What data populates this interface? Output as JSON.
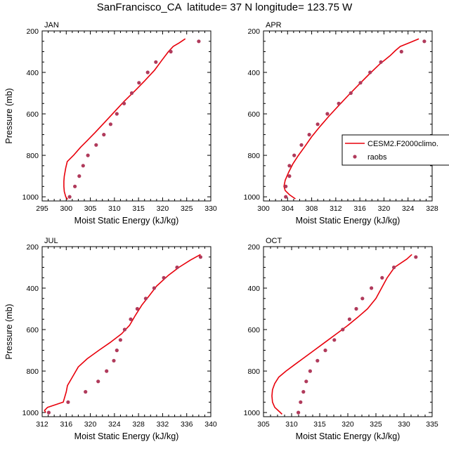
{
  "title": "SanFrancisco_CA  latitude= 37 N longitude= 123.75 W",
  "colors": {
    "model": "#e8000b",
    "obs": "#b03a5b",
    "axis": "#000000",
    "background": "#ffffff"
  },
  "legend": {
    "placement": "right of APR panel",
    "entries": [
      {
        "label": "CESM2.F2000climo.",
        "marker": "line",
        "color": "#e8000b"
      },
      {
        "label": "raobs",
        "marker": "dot",
        "color": "#b03a5b"
      }
    ]
  },
  "chart_data": [
    {
      "type": "line",
      "panel": "JAN",
      "title": "JAN",
      "xlabel": "Moist Static Energy (kJ/kg)",
      "ylabel": "Pressure (mb)",
      "xlim": [
        295,
        330
      ],
      "ylim": [
        1020,
        200
      ],
      "xticks": [
        295,
        300,
        305,
        310,
        315,
        320,
        325,
        330
      ],
      "yticks": [
        200,
        400,
        600,
        800,
        1000
      ],
      "y_reversed": true,
      "grid": false,
      "series": [
        {
          "name": "CESM2.F2000climo.",
          "style": "line",
          "points": [
            [
              300.3,
              1013
            ],
            [
              299.9,
              1000
            ],
            [
              299.6,
              975
            ],
            [
              299.5,
              950
            ],
            [
              299.5,
              925
            ],
            [
              299.6,
              900
            ],
            [
              299.9,
              860
            ],
            [
              300.2,
              830
            ],
            [
              301.5,
              800
            ],
            [
              303.0,
              760
            ],
            [
              304.3,
              730
            ],
            [
              306.0,
              690
            ],
            [
              308.0,
              640
            ],
            [
              310.0,
              590
            ],
            [
              312.0,
              540
            ],
            [
              314.2,
              490
            ],
            [
              316.3,
              440
            ],
            [
              318.3,
              390
            ],
            [
              319.9,
              340
            ],
            [
              321.2,
              300
            ],
            [
              322.2,
              275
            ],
            [
              323.5,
              257
            ],
            [
              324.7,
              238
            ]
          ]
        },
        {
          "name": "raobs",
          "style": "markers",
          "points": [
            [
              300.7,
              1000
            ],
            [
              301.8,
              950
            ],
            [
              302.7,
              900
            ],
            [
              303.5,
              850
            ],
            [
              304.5,
              800
            ],
            [
              306.2,
              750
            ],
            [
              307.8,
              700
            ],
            [
              309.2,
              650
            ],
            [
              310.5,
              600
            ],
            [
              312.0,
              550
            ],
            [
              313.6,
              500
            ],
            [
              315.1,
              450
            ],
            [
              316.9,
              400
            ],
            [
              318.6,
              350
            ],
            [
              321.7,
              300
            ],
            [
              327.5,
              250
            ]
          ]
        }
      ]
    },
    {
      "type": "line",
      "panel": "APR",
      "title": "APR",
      "xlabel": "Moist Static Energy (kJ/kg)",
      "ylabel": "",
      "xlim": [
        300,
        328
      ],
      "ylim": [
        1020,
        200
      ],
      "xticks": [
        300,
        304,
        308,
        312,
        316,
        320,
        324,
        328
      ],
      "yticks": [
        200,
        400,
        600,
        800,
        1000
      ],
      "y_reversed": true,
      "grid": false,
      "series": [
        {
          "name": "CESM2.F2000climo.",
          "style": "line",
          "points": [
            [
              305.3,
              1010
            ],
            [
              304.3,
              990
            ],
            [
              303.6,
              970
            ],
            [
              303.4,
              950
            ],
            [
              303.6,
              920
            ],
            [
              304.2,
              880
            ],
            [
              304.9,
              840
            ],
            [
              305.8,
              800
            ],
            [
              306.8,
              760
            ],
            [
              308.0,
              710
            ],
            [
              309.4,
              660
            ],
            [
              310.9,
              610
            ],
            [
              312.5,
              560
            ],
            [
              314.1,
              510
            ],
            [
              315.8,
              460
            ],
            [
              317.5,
              410
            ],
            [
              319.3,
              360
            ],
            [
              321.0,
              320
            ],
            [
              321.9,
              295
            ],
            [
              322.7,
              275
            ],
            [
              324.4,
              255
            ],
            [
              325.8,
              238
            ]
          ]
        },
        {
          "name": "raobs",
          "style": "markers",
          "points": [
            [
              303.7,
              1000
            ],
            [
              303.7,
              950
            ],
            [
              304.3,
              900
            ],
            [
              304.3,
              850
            ],
            [
              305.1,
              800
            ],
            [
              306.3,
              750
            ],
            [
              307.6,
              700
            ],
            [
              309.0,
              650
            ],
            [
              310.6,
              600
            ],
            [
              312.5,
              550
            ],
            [
              314.5,
              500
            ],
            [
              316.1,
              450
            ],
            [
              317.7,
              400
            ],
            [
              319.5,
              350
            ],
            [
              322.9,
              300
            ],
            [
              326.7,
              250
            ]
          ]
        }
      ]
    },
    {
      "type": "line",
      "panel": "JUL",
      "title": "JUL",
      "xlabel": "Moist Static Energy (kJ/kg)",
      "ylabel": "Pressure (mb)",
      "xlim": [
        312,
        340
      ],
      "ylim": [
        1020,
        200
      ],
      "xticks": [
        312,
        316,
        320,
        324,
        328,
        332,
        336,
        340
      ],
      "yticks": [
        200,
        400,
        600,
        800,
        1000
      ],
      "y_reversed": true,
      "grid": false,
      "series": [
        {
          "name": "CESM2.F2000climo.",
          "style": "line",
          "points": [
            [
              312.6,
              1000
            ],
            [
              312.4,
              990
            ],
            [
              312.9,
              975
            ],
            [
              315.5,
              950
            ],
            [
              316.0,
              900
            ],
            [
              316.2,
              870
            ],
            [
              317.0,
              830
            ],
            [
              318.0,
              780
            ],
            [
              319.5,
              740
            ],
            [
              321.4,
              700
            ],
            [
              323.4,
              660
            ],
            [
              325.2,
              620
            ],
            [
              326.5,
              580
            ],
            [
              327.5,
              530
            ],
            [
              328.6,
              480
            ],
            [
              329.7,
              440
            ],
            [
              331.0,
              390
            ],
            [
              332.9,
              340
            ],
            [
              334.7,
              300
            ],
            [
              336.6,
              265
            ],
            [
              338.3,
              238
            ]
          ]
        },
        {
          "name": "raobs",
          "style": "markers",
          "points": [
            [
              313.1,
              1000
            ],
            [
              316.3,
              950
            ],
            [
              319.2,
              900
            ],
            [
              321.3,
              850
            ],
            [
              322.7,
              800
            ],
            [
              323.9,
              750
            ],
            [
              324.4,
              700
            ],
            [
              325.0,
              650
            ],
            [
              325.7,
              600
            ],
            [
              326.7,
              550
            ],
            [
              327.8,
              500
            ],
            [
              329.2,
              450
            ],
            [
              330.6,
              400
            ],
            [
              332.2,
              350
            ],
            [
              334.4,
              300
            ],
            [
              338.3,
              250
            ]
          ]
        }
      ]
    },
    {
      "type": "line",
      "panel": "OCT",
      "title": "OCT",
      "xlabel": "Moist Static Energy (kJ/kg)",
      "ylabel": "",
      "xlim": [
        305,
        335
      ],
      "ylim": [
        1020,
        200
      ],
      "xticks": [
        305,
        310,
        315,
        320,
        325,
        330,
        335
      ],
      "yticks": [
        200,
        400,
        600,
        800,
        1000
      ],
      "y_reversed": true,
      "grid": false,
      "series": [
        {
          "name": "CESM2.F2000climo.",
          "style": "line",
          "points": [
            [
              308.3,
              1008
            ],
            [
              307.8,
              995
            ],
            [
              307.0,
              975
            ],
            [
              306.6,
              950
            ],
            [
              306.5,
              920
            ],
            [
              306.6,
              890
            ],
            [
              307.0,
              860
            ],
            [
              307.7,
              830
            ],
            [
              309.0,
              800
            ],
            [
              310.5,
              770
            ],
            [
              312.0,
              740
            ],
            [
              314.0,
              700
            ],
            [
              316.0,
              660
            ],
            [
              318.0,
              620
            ],
            [
              320.0,
              580
            ],
            [
              321.8,
              540
            ],
            [
              323.5,
              500
            ],
            [
              325.0,
              450
            ],
            [
              326.0,
              400
            ],
            [
              327.0,
              350
            ],
            [
              328.3,
              300
            ],
            [
              330.5,
              260
            ],
            [
              331.4,
              238
            ]
          ]
        },
        {
          "name": "raobs",
          "style": "markers",
          "points": [
            [
              311.2,
              1000
            ],
            [
              311.6,
              950
            ],
            [
              312.1,
              900
            ],
            [
              312.6,
              850
            ],
            [
              313.3,
              800
            ],
            [
              314.6,
              750
            ],
            [
              316.0,
              700
            ],
            [
              317.6,
              650
            ],
            [
              319.1,
              600
            ],
            [
              320.3,
              550
            ],
            [
              321.5,
              500
            ],
            [
              322.6,
              450
            ],
            [
              324.2,
              400
            ],
            [
              326.1,
              350
            ],
            [
              328.2,
              300
            ],
            [
              332.1,
              250
            ]
          ]
        }
      ]
    }
  ]
}
